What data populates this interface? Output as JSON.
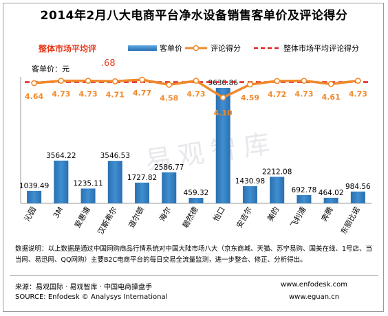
{
  "title": "2014年2月八大电商平台净水设备销售客单价及评论得分",
  "badge": "整体市场平均评",
  "unit_label": "客单价：元",
  "avg_value_fragment": ".68",
  "legend": {
    "bar": "客单价",
    "line": "评论得分",
    "avg": "整体市场平均评论得分"
  },
  "watermark": "易观智库",
  "notes": "数据说明：以上数据是通过中国网购商品行情系统对中国大陆市场八大（京东商城、天猫、苏宁易购、国美在线、1号店、当当网、易迅网、QQ网购）主要B2C电商平台的每日交易全流量监测，进一步整合、修正、分析得出。",
  "footer": {
    "source_cn": "来源：易观国际 · 易观智库 · 中国电商操盘手",
    "source_en": "SOURCE: Enfodesk © Analysys International",
    "url1": "www.enfodesk.com",
    "url2": "www.eguan.cn"
  },
  "colors": {
    "bar": "#3f8fd1",
    "bar_dark": "#2a6fb0",
    "line": "#f0892b",
    "avg": "#e01e1e",
    "score_text": "#f0892b",
    "badge": "#e83a1c"
  },
  "chart_data": {
    "type": "bar",
    "categories": [
      "沁园",
      "3M",
      "爱惠浦",
      "汉斯希尔",
      "道尔顿",
      "海尔",
      "碧然德",
      "怡口",
      "安吉尔",
      "美的",
      "飞利浦",
      "奔腾",
      "东丽比诺"
    ],
    "series": [
      {
        "name": "客单价",
        "type": "bar",
        "values": [
          1039.49,
          3564.22,
          1235.11,
          3546.53,
          1727.82,
          2586.77,
          459.32,
          9630.86,
          1430.98,
          2212.08,
          692.78,
          464.02,
          984.56
        ],
        "labels": [
          "1039.49",
          "3564.22",
          "1235.11",
          "3546.53",
          "1727.82",
          "2586.77",
          "459.32",
          "9630.86",
          "1430.98",
          "2212.08",
          "692.78",
          "464.02",
          "984.56"
        ]
      },
      {
        "name": "评论得分",
        "type": "line",
        "values": [
          4.64,
          4.73,
          4.73,
          4.71,
          4.77,
          4.58,
          4.73,
          4.1,
          4.59,
          4.72,
          4.73,
          4.61,
          4.73
        ],
        "labels": [
          "4.64",
          "4.73",
          "4.73",
          "4.71",
          "4.77",
          "4.58",
          "4.73",
          "4.10",
          "4.59",
          "4.72",
          "4.73",
          "4.61",
          "4.73"
        ]
      }
    ],
    "reference_line": {
      "name": "整体市场平均评论得分",
      "value": 4.68,
      "style": "dashed"
    },
    "legend_position": "top"
  }
}
